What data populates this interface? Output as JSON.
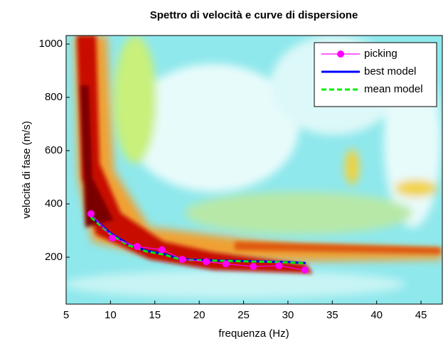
{
  "chart_data": {
    "type": "line",
    "title": "Spettro di velocità e curve di dispersione",
    "x_label": "frequenza (Hz)",
    "y_label": "velocità di fase (m/s)",
    "xlim": [
      5,
      47.4
    ],
    "ylim": [
      24,
      1032
    ],
    "xticks": [
      5,
      10,
      15,
      20,
      25,
      30,
      35,
      40,
      45
    ],
    "yticks": [
      200,
      400,
      600,
      800,
      1000
    ],
    "legend": "upper right",
    "series": [
      {
        "name": "picking",
        "color": "#ff00ff",
        "marker": "circle",
        "dashed": false,
        "x": [
          7.8,
          10.2,
          13.0,
          15.8,
          18.1,
          20.8,
          23.0,
          26.1,
          29.0,
          31.9
        ],
        "values": [
          363,
          272,
          240,
          228,
          192,
          183,
          175,
          165,
          168,
          152
        ]
      },
      {
        "name": "best model",
        "color": "#0000ff",
        "marker": null,
        "dashed": false,
        "x": [
          7.8,
          10,
          12,
          14,
          16,
          18,
          22,
          26,
          30,
          32
        ],
        "values": [
          355,
          290,
          250,
          225,
          212,
          192,
          188,
          185,
          182,
          178
        ]
      },
      {
        "name": "mean model",
        "color": "#00ee00",
        "marker": null,
        "dashed": true,
        "x": [
          7.8,
          10,
          12,
          14,
          16,
          18,
          22,
          26,
          30,
          32
        ],
        "values": [
          350,
          285,
          245,
          222,
          210,
          190,
          187,
          184,
          181,
          177
        ]
      }
    ]
  }
}
